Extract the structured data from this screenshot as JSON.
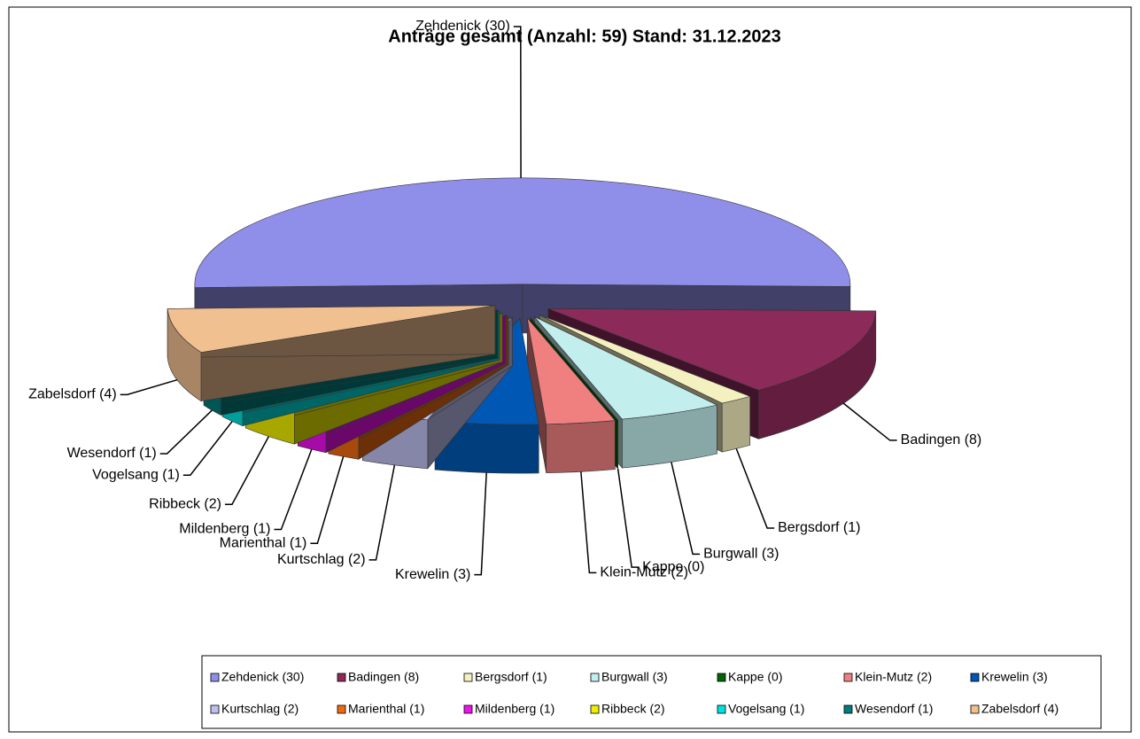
{
  "chart_data": {
    "type": "pie3d",
    "title": "Anträge gesamt (Anzahl: 59) Stand: 31.12.2023",
    "categories": [
      "Zehdenick (30)",
      "Badingen (8)",
      "Bergsdorf (1)",
      "Burgwall (3)",
      "Kappe (0)",
      "Klein-Mutz (2)",
      "Krewelin (3)",
      "Kurtschlag (2)",
      "Marienthal (1)",
      "Mildenberg (1)",
      "Ribbeck (2)",
      "Vogelsang (1)",
      "Wesendorf (1)",
      "Zabelsdorf (4)"
    ],
    "values": [
      30,
      8,
      1,
      3,
      0,
      2,
      3,
      2,
      1,
      1,
      2,
      1,
      1,
      4
    ],
    "colors": [
      "#8f8fea",
      "#8c2a5a",
      "#f5f0c0",
      "#c2eeee",
      "#006400",
      "#f08080",
      "#0058b4",
      "#c0c0f0",
      "#ee6a10",
      "#ee10ee",
      "#eeee00",
      "#00e0e0",
      "#007b7b",
      "#f0c090"
    ],
    "legend": "bottom"
  }
}
